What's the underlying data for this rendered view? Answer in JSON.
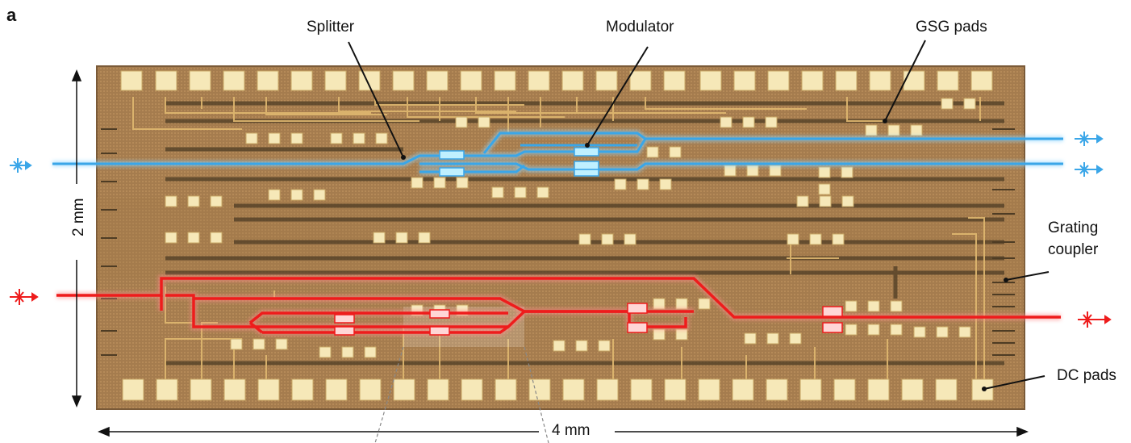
{
  "panel_letter": "a",
  "labels": {
    "splitter": "Splitter",
    "modulator": "Modulator",
    "gsg_pads": "GSG pads",
    "grating_coupler_line1": "Grating",
    "grating_coupler_line2": "coupler",
    "dc_pads": "DC pads"
  },
  "dimensions": {
    "height": "2 mm",
    "width": "4 mm"
  },
  "colors": {
    "chip_bg": "#a57c4e",
    "chip_dark": "#8a6440",
    "pad": "#f6e8b8",
    "pad_edge": "#c9a866",
    "wire": "#e0b870",
    "wire_dark": "#5e4a2e",
    "blue_path": "#3aa6e8",
    "red_path": "#ee1c1c"
  }
}
